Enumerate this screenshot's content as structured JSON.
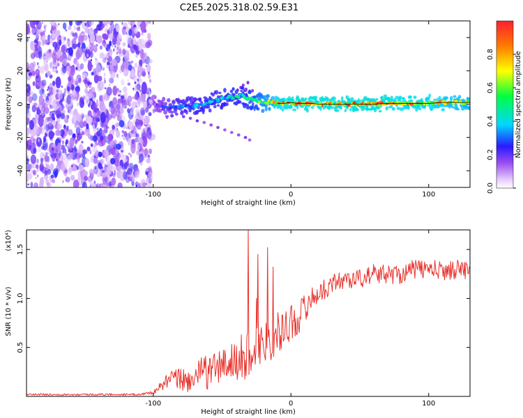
{
  "title": "C2E5.2025.318.02.59.E31",
  "chart_data": [
    {
      "type": "heatmap",
      "name": "spectrogram",
      "xlabel": "Height of straight line (km)",
      "ylabel": "Frequency (Hz)",
      "xlim": [
        -192,
        130
      ],
      "ylim": [
        -50,
        50
      ],
      "xticks": [
        -100,
        0,
        100
      ],
      "xtick_labels": [
        "-100",
        "0",
        "100"
      ],
      "yticks": [
        -40,
        -20,
        0,
        20,
        40
      ],
      "ytick_labels": [
        "-40",
        "-20",
        "0",
        "20",
        "40"
      ],
      "colorbar": {
        "label": "Normalized spectral amplitude",
        "range": [
          0,
          1
        ],
        "ticks": [
          0,
          0.2,
          0.4,
          0.6,
          0.8
        ],
        "tick_labels": [
          "0.0",
          "0.2",
          "0.4",
          "0.6",
          "0.8"
        ]
      },
      "noise_region_x": [
        -192,
        -102
      ],
      "ridge": {
        "x": [
          -102,
          -95,
          -90,
          -85,
          -80,
          -75,
          -70,
          -65,
          -60,
          -55,
          -50,
          -45,
          -40,
          -35,
          -30,
          -25,
          -20,
          -15,
          -10,
          -5,
          0,
          5,
          10,
          15,
          20,
          30,
          40,
          50,
          60,
          70,
          80,
          90,
          100,
          110,
          120,
          130
        ],
        "freq": [
          1,
          -1.5,
          -2.5,
          -2,
          -1.5,
          -1.5,
          -1,
          -0.5,
          0.5,
          2,
          3,
          4,
          4.5,
          5,
          3,
          2,
          1,
          1,
          0.5,
          0.5,
          1,
          0.5,
          0.5,
          0.5,
          0,
          0,
          0,
          0,
          0,
          0.5,
          0.5,
          0.5,
          0.5,
          1,
          1,
          1
        ],
        "amp": [
          0.1,
          0.25,
          0.3,
          0.35,
          0.4,
          0.4,
          0.4,
          0.45,
          0.45,
          0.45,
          0.45,
          0.5,
          0.5,
          0.5,
          0.55,
          0.6,
          0.7,
          0.75,
          0.85,
          0.9,
          0.95,
          0.95,
          0.95,
          0.95,
          0.95,
          0.95,
          0.95,
          0.95,
          0.95,
          0.95,
          0.9,
          0.9,
          0.9,
          0.85,
          0.8,
          0.8
        ]
      },
      "secondary_branch": {
        "x": [
          -93,
          -88,
          -83,
          -78,
          -73,
          -68,
          -63,
          -58,
          -53,
          -48,
          -43,
          -38,
          -33,
          -30
        ],
        "freq": [
          -3,
          -4.5,
          -6,
          -7.5,
          -8.5,
          -10,
          -11,
          -12.5,
          -14,
          -15.5,
          -17,
          -18.5,
          -20,
          -21.5
        ]
      }
    },
    {
      "type": "line",
      "name": "snr",
      "xlabel": "Height of straight line (km)",
      "ylabel": "SNR (10 * v/v)",
      "y_exponent_label": "(x10⁴)",
      "xlim": [
        -192,
        130
      ],
      "ylim": [
        0,
        1.7
      ],
      "xticks": [
        -100,
        0,
        100
      ],
      "xtick_labels": [
        "-100",
        "0",
        "100"
      ],
      "yticks": [
        0.5,
        1.0,
        1.5
      ],
      "ytick_labels": [
        "0.5",
        "1.0",
        "1.5"
      ],
      "color": "#e8302a",
      "x": [
        -192,
        -150,
        -110,
        -100,
        -95,
        -90,
        -85,
        -80,
        -75,
        -70,
        -65,
        -60,
        -55,
        -50,
        -45,
        -40,
        -35,
        -30,
        -25,
        -20,
        -15,
        -10,
        -5,
        0,
        5,
        10,
        15,
        20,
        25,
        30,
        40,
        50,
        60,
        70,
        80,
        90,
        100,
        110,
        120,
        130
      ],
      "mean": [
        0.02,
        0.02,
        0.02,
        0.04,
        0.1,
        0.15,
        0.18,
        0.18,
        0.15,
        0.2,
        0.25,
        0.25,
        0.3,
        0.3,
        0.35,
        0.35,
        0.4,
        0.45,
        0.5,
        0.55,
        0.6,
        0.65,
        0.7,
        0.75,
        0.8,
        0.9,
        1.0,
        1.05,
        1.1,
        1.15,
        1.2,
        1.2,
        1.25,
        1.25,
        1.25,
        1.3,
        1.3,
        1.28,
        1.3,
        1.3
      ],
      "noise": [
        0.01,
        0.01,
        0.01,
        0.02,
        0.04,
        0.08,
        0.1,
        0.12,
        0.12,
        0.12,
        0.15,
        0.18,
        0.18,
        0.2,
        0.2,
        0.22,
        0.25,
        0.25,
        0.25,
        0.25,
        0.25,
        0.2,
        0.2,
        0.2,
        0.18,
        0.15,
        0.12,
        0.1,
        0.1,
        0.1,
        0.1,
        0.1,
        0.1,
        0.1,
        0.1,
        0.1,
        0.1,
        0.1,
        0.1,
        0.1
      ],
      "peaks": [
        {
          "x": -31,
          "y": 1.7
        },
        {
          "x": -25,
          "y": 1.0
        },
        {
          "x": -17,
          "y": 1.52
        },
        {
          "x": -13,
          "y": 1.32
        },
        {
          "x": -24,
          "y": 1.45
        }
      ]
    }
  ]
}
